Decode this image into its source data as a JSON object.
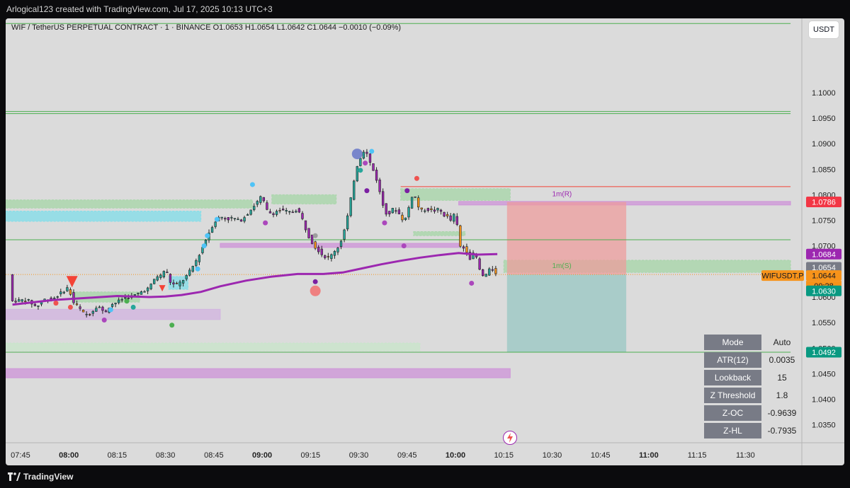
{
  "header": {
    "caption": "Arlogical123 created with TradingView.com, Jul 17, 2025 10:13 UTC+3"
  },
  "legend": {
    "text": "WIF / TetherUS PERPETUAL CONTRACT · 1 · BINANCE  O1.0653  H1.0654  L1.0642  C1.0644  −0.0010 (−0.09%)"
  },
  "currency_button": "USDT",
  "footer": {
    "brand": "TradingView"
  },
  "stats_table": [
    {
      "key": "Mode",
      "value": "Auto"
    },
    {
      "key": "ATR(12)",
      "value": "0.0035"
    },
    {
      "key": "Lookback",
      "value": "15"
    },
    {
      "key": "Z Threshold",
      "value": "1.8"
    },
    {
      "key": "Z-OC",
      "value": "-0.9639"
    },
    {
      "key": "Z-HL",
      "value": "-0.7935"
    }
  ],
  "colors": {
    "bull": "#26a69a",
    "bear": "#9c27b0",
    "orange": "#f7931a",
    "ma": "#9c27b0",
    "green_line": "#4caf50",
    "red_line": "#f44336",
    "teal_zone": "#26a69a",
    "red_zone": "#ef9a9a"
  },
  "chart_data": {
    "type": "candlestick",
    "symbol": "WIFUSDT.P",
    "interval": "1",
    "y_ticks": [
      1.1,
      1.095,
      1.09,
      1.085,
      1.08,
      1.075,
      1.07,
      1.065,
      1.06,
      1.055,
      1.05,
      1.045,
      1.04,
      1.035
    ],
    "y_tick_labels": [
      "1.1000",
      "1.0950",
      "1.0900",
      "1.0850",
      "1.0800",
      "1.0750",
      "1.0700",
      "1.0650",
      "1.0600",
      "1.0550",
      "1.0500",
      "1.0450",
      "1.0400",
      "1.0350"
    ],
    "ylim": [
      1.0315,
      1.1145
    ],
    "x_ticks": [
      {
        "min": 0,
        "label": "07:45",
        "bold": false
      },
      {
        "min": 15,
        "label": "08:00",
        "bold": true
      },
      {
        "min": 30,
        "label": "08:15",
        "bold": false
      },
      {
        "min": 45,
        "label": "08:30",
        "bold": false
      },
      {
        "min": 60,
        "label": "08:45",
        "bold": false
      },
      {
        "min": 75,
        "label": "09:00",
        "bold": true
      },
      {
        "min": 90,
        "label": "09:15",
        "bold": false
      },
      {
        "min": 105,
        "label": "09:30",
        "bold": false
      },
      {
        "min": 120,
        "label": "09:45",
        "bold": false
      },
      {
        "min": 135,
        "label": "10:00",
        "bold": true
      },
      {
        "min": 150,
        "label": "10:15",
        "bold": false
      },
      {
        "min": 165,
        "label": "10:30",
        "bold": false
      },
      {
        "min": 180,
        "label": "10:45",
        "bold": false
      },
      {
        "min": 195,
        "label": "11:00",
        "bold": true
      },
      {
        "min": 210,
        "label": "11:15",
        "bold": false
      },
      {
        "min": 225,
        "label": "11:30",
        "bold": false
      }
    ],
    "xlim_min": [
      -4.6,
      242.5
    ],
    "price_path": [
      [
        -2.5,
        1.0592
      ],
      [
        2,
        1.0595
      ],
      [
        5,
        1.058
      ],
      [
        7,
        1.0595
      ],
      [
        10,
        1.0596
      ],
      [
        13,
        1.061
      ],
      [
        15,
        1.062
      ],
      [
        16,
        1.0592
      ],
      [
        18,
        1.058
      ],
      [
        20,
        1.0565
      ],
      [
        22,
        1.057
      ],
      [
        24,
        1.0585
      ],
      [
        26,
        1.0568
      ],
      [
        28,
        1.0585
      ],
      [
        30,
        1.059
      ],
      [
        32,
        1.0598
      ],
      [
        34,
        1.06
      ],
      [
        36,
        1.0605
      ],
      [
        38,
        1.0612
      ],
      [
        40,
        1.0618
      ],
      [
        42,
        1.064
      ],
      [
        44,
        1.0642
      ],
      [
        45,
        1.066
      ],
      [
        46,
        1.0632
      ],
      [
        48,
        1.0622
      ],
      [
        50,
        1.063
      ],
      [
        52,
        1.0645
      ],
      [
        54,
        1.0665
      ],
      [
        56,
        1.069
      ],
      [
        58,
        1.072
      ],
      [
        60,
        1.0745
      ],
      [
        62,
        1.0758
      ],
      [
        64,
        1.0752
      ],
      [
        66,
        1.0755
      ],
      [
        68,
        1.0748
      ],
      [
        70,
        1.076
      ],
      [
        72,
        1.0775
      ],
      [
        74,
        1.079
      ],
      [
        75,
        1.08
      ],
      [
        76,
        1.0772
      ],
      [
        78,
        1.0762
      ],
      [
        80,
        1.077
      ],
      [
        82,
        1.0768
      ],
      [
        84,
        1.0765
      ],
      [
        86,
        1.0772
      ],
      [
        88,
        1.0745
      ],
      [
        89,
        1.0722
      ],
      [
        90,
        1.0715
      ],
      [
        91,
        1.07
      ],
      [
        92,
        1.0695
      ],
      [
        94,
        1.068
      ],
      [
        96,
        1.0676
      ],
      [
        97,
        1.0688
      ],
      [
        99,
        1.07
      ],
      [
        100,
        1.0722
      ],
      [
        101,
        1.074
      ],
      [
        102,
        1.0775
      ],
      [
        103,
        1.0808
      ],
      [
        104,
        1.085
      ],
      [
        105,
        1.0865
      ],
      [
        106,
        1.0882
      ],
      [
        107,
        1.089
      ],
      [
        108,
        1.087
      ],
      [
        109,
        1.0855
      ],
      [
        110,
        1.084
      ],
      [
        111,
        1.082
      ],
      [
        112,
        1.079
      ],
      [
        113,
        1.077
      ],
      [
        114,
        1.076
      ],
      [
        116,
        1.0775
      ],
      [
        118,
        1.0758
      ],
      [
        119,
        1.0748
      ],
      [
        120,
        1.076
      ],
      [
        121,
        1.079
      ],
      [
        122,
        1.0805
      ],
      [
        123,
        1.0785
      ],
      [
        124,
        1.0768
      ],
      [
        126,
        1.0772
      ],
      [
        128,
        1.0768
      ],
      [
        130,
        1.0772
      ],
      [
        131,
        1.0762
      ],
      [
        133,
        1.0755
      ],
      [
        134,
        1.0745
      ],
      [
        135,
        1.0775
      ],
      [
        136,
        1.0705
      ],
      [
        137,
        1.0692
      ],
      [
        138,
        1.07
      ],
      [
        139,
        1.068
      ],
      [
        140,
        1.0672
      ],
      [
        141,
        1.0695
      ],
      [
        142,
        1.066
      ],
      [
        143,
        1.0645
      ],
      [
        144,
        1.0638
      ],
      [
        145,
        1.065
      ],
      [
        146,
        1.0655
      ],
      [
        147,
        1.0652
      ],
      [
        148,
        1.0644
      ]
    ],
    "candles_start_min": -2.5,
    "candles_end_min": 148,
    "moving_average": [
      [
        -2.5,
        1.0585
      ],
      [
        10,
        1.0594
      ],
      [
        20,
        1.0598
      ],
      [
        30,
        1.0602
      ],
      [
        40,
        1.06
      ],
      [
        45,
        1.0601
      ],
      [
        50,
        1.0604
      ],
      [
        56,
        1.061
      ],
      [
        62,
        1.0621
      ],
      [
        70,
        1.0632
      ],
      [
        78,
        1.064
      ],
      [
        86,
        1.0645
      ],
      [
        94,
        1.0645
      ],
      [
        100,
        1.0648
      ],
      [
        106,
        1.0656
      ],
      [
        112,
        1.0664
      ],
      [
        118,
        1.0671
      ],
      [
        124,
        1.0677
      ],
      [
        130,
        1.0682
      ],
      [
        136,
        1.0686
      ],
      [
        142,
        1.0683
      ],
      [
        148,
        1.0684
      ]
    ],
    "horizontal_lines": [
      {
        "y": 1.1135,
        "x1": -4.6,
        "x2": 239,
        "color": "#4caf50"
      },
      {
        "y": 1.0963,
        "x1": -4.6,
        "x2": 239,
        "color": "#4caf50",
        "double": true
      },
      {
        "y": 1.0816,
        "x1": 118,
        "x2": 239,
        "color": "#f44336"
      },
      {
        "y": 1.0712,
        "x1": -4.6,
        "x2": 239,
        "color": "#4caf50"
      },
      {
        "y": 1.0492,
        "x1": -4.6,
        "x2": 239,
        "color": "#4caf50"
      }
    ],
    "price_zones": [
      {
        "y1": 1.079,
        "y2": 1.0774,
        "x1": -4.6,
        "x2": 72,
        "kind": "demand",
        "color": "#a5d6a7"
      },
      {
        "y1": 1.0768,
        "y2": 1.0748,
        "x1": -4.6,
        "x2": 56,
        "kind": "supply",
        "color": "#80deea"
      },
      {
        "y1": 1.08,
        "y2": 1.0782,
        "x1": 78,
        "x2": 98,
        "kind": "demand",
        "color": "#a5d6a7"
      },
      {
        "y1": 1.0812,
        "y2": 1.0789,
        "x1": 118,
        "x2": 152,
        "kind": "demand",
        "color": "#a5d6a7"
      },
      {
        "y1": 1.0728,
        "y2": 1.072,
        "x1": 122,
        "x2": 138,
        "kind": "demand",
        "color": "#a5d6a7"
      },
      {
        "y1": 1.061,
        "y2": 1.059,
        "x1": 16,
        "x2": 37,
        "kind": "demand",
        "color": "#a5d6a7"
      },
      {
        "y1": 1.064,
        "y2": 1.0615,
        "x1": 46,
        "x2": 52,
        "kind": "supply",
        "color": "#80deea"
      },
      {
        "y1": 1.051,
        "y2": 1.0495,
        "x1": -4.6,
        "x2": 124,
        "kind": "demand",
        "color": "#c8e6c9"
      },
      {
        "y1": 1.046,
        "y2": 1.0442,
        "x1": -4.6,
        "x2": 152,
        "kind": "purple",
        "color": "#ce93d8"
      },
      {
        "y1": 1.0576,
        "y2": 1.0556,
        "x1": -4.6,
        "x2": 62,
        "kind": "purple",
        "color": "#d1b3e0"
      },
      {
        "y1": 1.0705,
        "y2": 1.0697,
        "x1": 62,
        "x2": 136,
        "kind": "purple",
        "color": "#ce93d8"
      },
      {
        "y1": 1.0787,
        "y2": 1.078,
        "x1": 136,
        "x2": 239,
        "kind": "purple",
        "color": "#ce93d8"
      },
      {
        "y1": 1.0672,
        "y2": 1.0648,
        "x1": 150,
        "x2": 239,
        "kind": "demand",
        "color": "#a5d6a7"
      }
    ],
    "position_tool": {
      "x1": 151,
      "x2": 188,
      "entry": 1.0644,
      "stop": 1.0786,
      "target": 1.0492
    },
    "zone_labels": [
      {
        "text": "1m(R)",
        "x": 165,
        "y": 1.0797,
        "color": "#9c27b0"
      },
      {
        "text": "1m(S)",
        "x": 165,
        "y": 1.0657,
        "color": "#4caf50"
      }
    ],
    "signal_markers": [
      {
        "x": 16,
        "y": 1.063,
        "shape": "triangle-down",
        "color": "#f44336"
      },
      {
        "x": 44,
        "y": 1.0617,
        "shape": "triangle-down",
        "color": "#f44336"
      },
      {
        "x": 91.5,
        "y": 1.0612,
        "shape": "circle",
        "color": "#ef8080"
      },
      {
        "x": 104.5,
        "y": 1.088,
        "shape": "circle",
        "color": "#7986cb"
      }
    ],
    "dots": [
      {
        "x": 15.5,
        "y": 1.058,
        "color": "#ef5350"
      },
      {
        "x": 11,
        "y": 1.0588,
        "color": "#ef5350"
      },
      {
        "x": 26,
        "y": 1.0555,
        "color": "#ab47bc"
      },
      {
        "x": 28,
        "y": 1.0575,
        "color": "#4fc3f7"
      },
      {
        "x": 33,
        "y": 1.0592,
        "color": "#4caf50"
      },
      {
        "x": 35,
        "y": 1.058,
        "color": "#26a69a"
      },
      {
        "x": 47,
        "y": 1.0545,
        "color": "#4caf50"
      },
      {
        "x": 55,
        "y": 1.0655,
        "color": "#4fc3f7"
      },
      {
        "x": 57,
        "y": 1.07,
        "color": "#4fc3f7"
      },
      {
        "x": 58,
        "y": 1.072,
        "color": "#4fc3f7"
      },
      {
        "x": 61,
        "y": 1.0752,
        "color": "#4fc3f7"
      },
      {
        "x": 72,
        "y": 1.082,
        "color": "#4fc3f7"
      },
      {
        "x": 76,
        "y": 1.0745,
        "color": "#ab47bc"
      },
      {
        "x": 91.5,
        "y": 1.063,
        "color": "#7b1fa2"
      },
      {
        "x": 105.5,
        "y": 1.0848,
        "color": "#26a69a"
      },
      {
        "x": 107,
        "y": 1.0862,
        "color": "#ab47bc"
      },
      {
        "x": 107.5,
        "y": 1.0808,
        "color": "#7b1fa2"
      },
      {
        "x": 109,
        "y": 1.0885,
        "color": "#4fc3f7"
      },
      {
        "x": 113,
        "y": 1.0745,
        "color": "#ab47bc"
      },
      {
        "x": 120,
        "y": 1.0808,
        "color": "#7b1fa2"
      },
      {
        "x": 123,
        "y": 1.0832,
        "color": "#ef5350"
      },
      {
        "x": 119,
        "y": 1.07,
        "color": "#ab47bc"
      },
      {
        "x": 140,
        "y": 1.0627,
        "color": "#ab47bc"
      },
      {
        "x": 91.5,
        "y": 1.072,
        "color": "#9e9e9e"
      }
    ]
  },
  "price_labels": [
    {
      "text": "1.0786",
      "y": 1.0786,
      "bg": "#f23645",
      "fg": "#ffffff"
    },
    {
      "text": "1.0684",
      "y": 1.0684,
      "bg": "#9c27b0",
      "fg": "#ffffff"
    },
    {
      "text": "1.0654",
      "y": 1.0658,
      "bg": "#787b86",
      "fg": "#ffffff"
    },
    {
      "text": "1.0644",
      "y": 1.0642,
      "bg": "#f7931a",
      "fg": "#131722",
      "tag": "WIFUSDT.P",
      "countdown": "00:28"
    },
    {
      "text": "1.0630",
      "y": 1.0612,
      "bg": "#089981",
      "fg": "#ffffff"
    },
    {
      "text": "1.0492",
      "y": 1.0492,
      "bg": "#089981",
      "fg": "#ffffff"
    }
  ]
}
